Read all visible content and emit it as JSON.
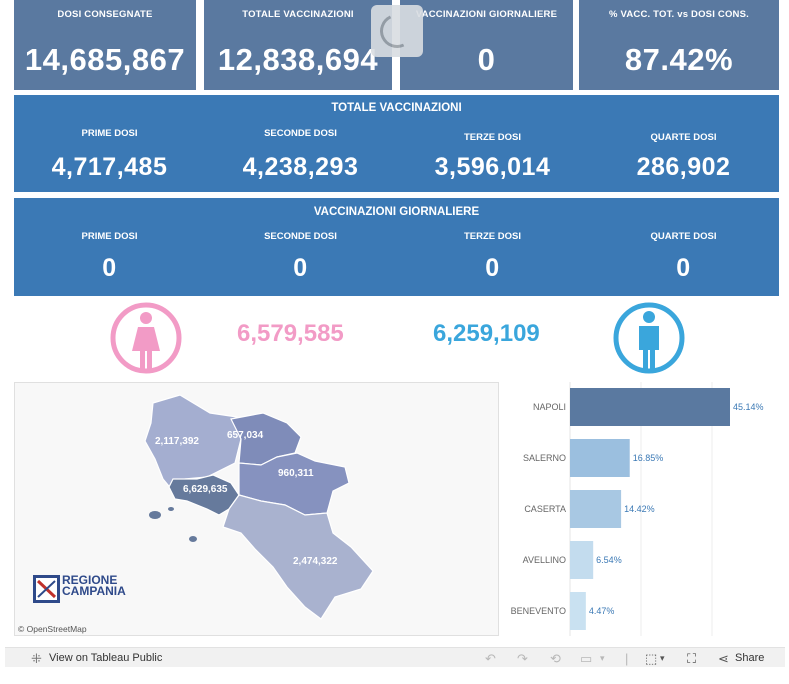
{
  "kpis": [
    {
      "label": "DOSI  CONSEGNATE",
      "value": "14,685,867"
    },
    {
      "label": "TOTALE VACCINAZIONI",
      "value": "12,838,694"
    },
    {
      "label": "VACCINAZIONI GIORNALIERE",
      "value": "0"
    },
    {
      "label": "% VACC. TOT. vs DOSI CONS.",
      "value": "87.42%"
    }
  ],
  "totale": {
    "title": "TOTALE VACCINAZIONI",
    "cols": [
      {
        "label": "PRIME DOSI",
        "value": "4,717,485"
      },
      {
        "label": "SECONDE DOSI",
        "value": "4,238,293"
      },
      {
        "label": "TERZE DOSI",
        "value": "3,596,014"
      },
      {
        "label": "QUARTE DOSI",
        "value": "286,902"
      }
    ]
  },
  "giornaliere": {
    "title": "VACCINAZIONI GIORNALIERE",
    "cols": [
      {
        "label": "PRIME DOSI",
        "value": "0"
      },
      {
        "label": "SECONDE DOSI",
        "value": "0"
      },
      {
        "label": "TERZE DOSI",
        "value": "0"
      },
      {
        "label": "QUARTE DOSI",
        "value": "0"
      }
    ]
  },
  "gender": {
    "female_value": "6,579,585",
    "male_value": "6,259,109",
    "female_color": "#f29bc6",
    "male_color": "#3aa6dc"
  },
  "map": {
    "labels": {
      "caserta": "2,117,392",
      "benevento": "657,034",
      "avellino": "960,311",
      "napoli": "6,629,635",
      "salerno": "2,474,322"
    },
    "attribution": "© OpenStreetMap",
    "logo_line1": "REGIONE",
    "logo_line2": "CAMPANIA"
  },
  "chart_data": {
    "type": "bar",
    "orientation": "horizontal",
    "categories": [
      "NAPOLI",
      "SALERNO",
      "CASERTA",
      "AVELLINO",
      "BENEVENTO"
    ],
    "values": [
      45.14,
      16.85,
      14.42,
      6.54,
      4.47
    ],
    "value_labels": [
      "45.14%",
      "16.85%",
      "14.42%",
      "6.54%",
      "4.47%"
    ],
    "colors": [
      "#5a79a0",
      "#9bbfdf",
      "#a8c8e3",
      "#c3dcee",
      "#c9e1f1"
    ]
  },
  "footer": {
    "tableau_link": "View on Tableau Public",
    "share_label": "Share"
  }
}
